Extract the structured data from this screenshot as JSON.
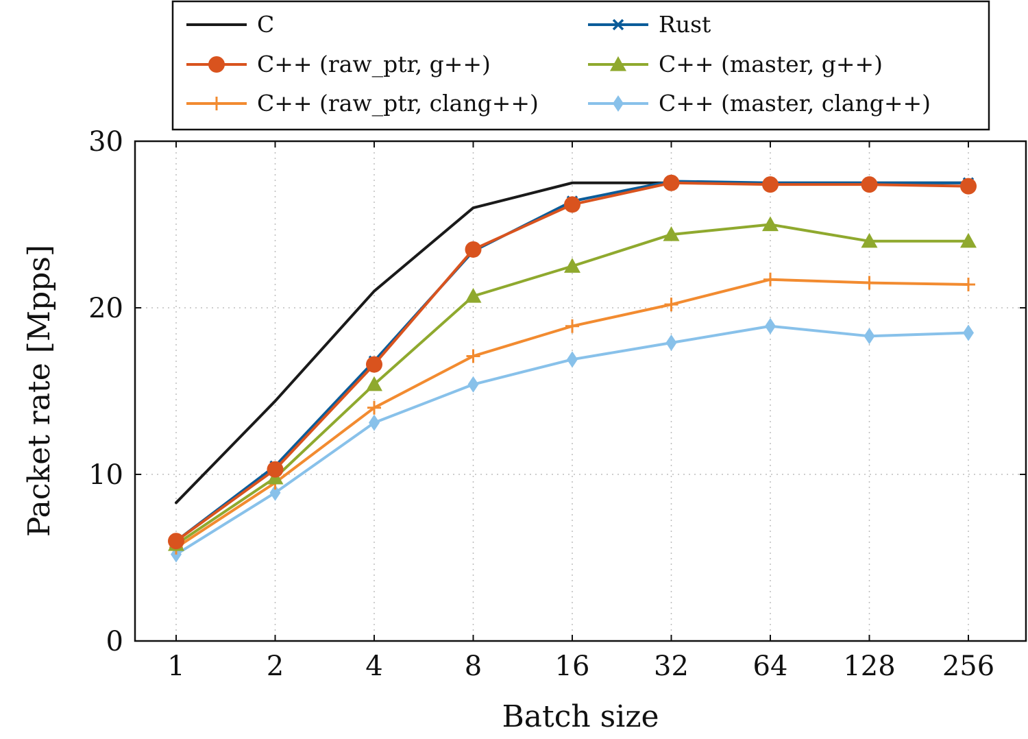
{
  "chart_data": {
    "type": "line",
    "title": "",
    "xlabel": "Batch size",
    "ylabel": "Packet rate [Mpps]",
    "categories": [
      "1",
      "2",
      "4",
      "8",
      "16",
      "32",
      "64",
      "128",
      "256"
    ],
    "ylim": [
      0,
      30
    ],
    "yticks": [
      "0",
      "10",
      "20",
      "30"
    ],
    "grid": true,
    "legend_position": "top (above plot), two columns",
    "series": [
      {
        "name": "C",
        "color": "#1a1a1a",
        "marker": "none",
        "values": [
          8.3,
          14.4,
          21.0,
          26.0,
          27.5,
          27.5,
          27.5,
          27.5,
          27.5
        ]
      },
      {
        "name": "Rust",
        "color": "#0b5c99",
        "marker": "x",
        "values": [
          6.0,
          10.5,
          16.8,
          23.4,
          26.4,
          27.6,
          27.5,
          27.5,
          27.5
        ]
      },
      {
        "name": "C++ (raw_ptr, g++)",
        "color": "#d9531e",
        "marker": "circle",
        "values": [
          6.0,
          10.3,
          16.6,
          23.5,
          26.2,
          27.5,
          27.4,
          27.4,
          27.3
        ]
      },
      {
        "name": "C++ (master, g++)",
        "color": "#8fa92e",
        "marker": "triangle",
        "values": [
          5.8,
          9.8,
          15.4,
          20.7,
          22.5,
          24.4,
          25.0,
          24.0,
          24.0
        ]
      },
      {
        "name": "C++ (raw_ptr, clang++)",
        "color": "#f28b30",
        "marker": "plus",
        "values": [
          5.6,
          9.5,
          14.0,
          17.1,
          18.9,
          20.2,
          21.7,
          21.5,
          21.4
        ]
      },
      {
        "name": "C++ (master, clang++)",
        "color": "#88c1ea",
        "marker": "diamond",
        "values": [
          5.2,
          8.9,
          13.1,
          15.4,
          16.9,
          17.9,
          18.9,
          18.3,
          18.5
        ]
      }
    ]
  }
}
